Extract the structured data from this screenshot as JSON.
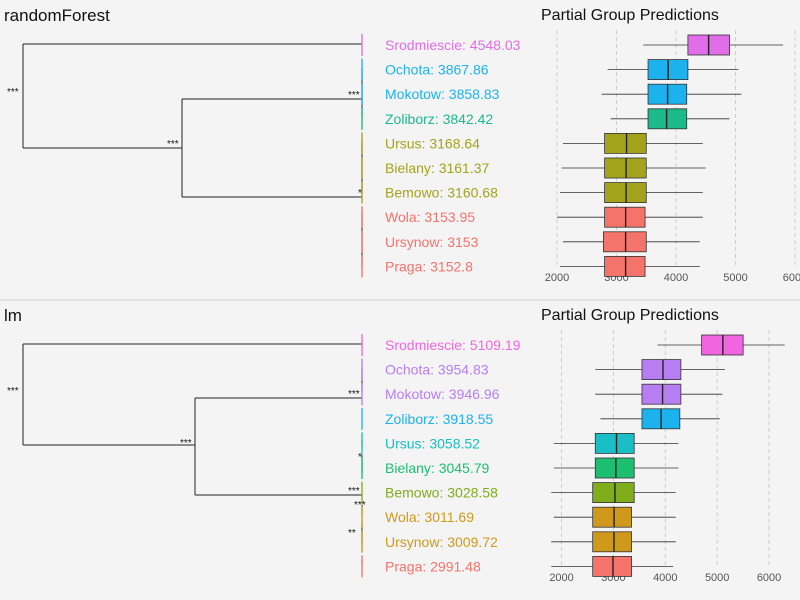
{
  "chart_data": [
    {
      "type": "dendrogram+boxplot",
      "title": "randomForest",
      "right_title": "Partial Group Predictions",
      "xlim": [
        2000,
        6000
      ],
      "xticks": [
        2000,
        3000,
        4000,
        5000,
        6000
      ],
      "groups": [
        {
          "label": "Srodmiescie: 4548.03",
          "color": "#e06ee6",
          "box": {
            "whisker_low": 3450,
            "q1": 4200,
            "median": 4548,
            "q3": 4900,
            "whisker_high": 5800
          }
        },
        {
          "label": "Ochota: 3867.86",
          "color": "#1cb2ed",
          "box": {
            "whisker_low": 2850,
            "q1": 3530,
            "median": 3868,
            "q3": 4200,
            "whisker_high": 5050
          }
        },
        {
          "label": "Mokotow: 3858.83",
          "color": "#1cb2ed",
          "box": {
            "whisker_low": 2750,
            "q1": 3530,
            "median": 3859,
            "q3": 4180,
            "whisker_high": 5100
          }
        },
        {
          "label": "Zoliborz: 3842.42",
          "color": "#1cb98a",
          "box": {
            "whisker_low": 2900,
            "q1": 3530,
            "median": 3842,
            "q3": 4180,
            "whisker_high": 4900
          }
        },
        {
          "label": "Ursus: 3168.64",
          "color": "#a3a31c",
          "box": {
            "whisker_low": 2100,
            "q1": 2800,
            "median": 3169,
            "q3": 3500,
            "whisker_high": 4450
          }
        },
        {
          "label": "Bielany: 3161.37",
          "color": "#a3a31c",
          "box": {
            "whisker_low": 2080,
            "q1": 2800,
            "median": 3161,
            "q3": 3500,
            "whisker_high": 4500
          }
        },
        {
          "label": "Bemowo: 3160.68",
          "color": "#a3a31c",
          "box": {
            "whisker_low": 2050,
            "q1": 2800,
            "median": 3161,
            "q3": 3500,
            "whisker_high": 4450
          }
        },
        {
          "label": "Wola: 3153.95",
          "color": "#f4736b",
          "box": {
            "whisker_low": 2000,
            "q1": 2800,
            "median": 3154,
            "q3": 3480,
            "whisker_high": 4450
          }
        },
        {
          "label": "Ursynow: 3153",
          "color": "#f4736b",
          "box": {
            "whisker_low": 2100,
            "q1": 2780,
            "median": 3153,
            "q3": 3500,
            "whisker_high": 4400
          }
        },
        {
          "label": "Praga: 3152.8",
          "color": "#f4736b",
          "box": {
            "whisker_low": 2050,
            "q1": 2800,
            "median": 3153,
            "q3": 3480,
            "whisker_high": 4400
          }
        }
      ],
      "merges": [
        {
          "stars": "***"
        },
        {
          "stars": "***"
        },
        {
          "stars": "***"
        },
        {
          "stars": "*"
        }
      ]
    },
    {
      "type": "dendrogram+boxplot",
      "title": "lm",
      "right_title": "Partial Group Predictions",
      "xlim": [
        1700,
        6500
      ],
      "xticks": [
        2000,
        3000,
        4000,
        5000,
        6000
      ],
      "groups": [
        {
          "label": "Srodmiescie: 5109.19",
          "color": "#f265e1",
          "box": {
            "whisker_low": 3850,
            "q1": 4700,
            "median": 5109,
            "q3": 5500,
            "whisker_high": 6300
          }
        },
        {
          "label": "Ochota: 3954.83",
          "color": "#b77ef2",
          "box": {
            "whisker_low": 2650,
            "q1": 3550,
            "median": 3955,
            "q3": 4300,
            "whisker_high": 5150
          }
        },
        {
          "label": "Mokotow: 3946.96",
          "color": "#b77ef2",
          "box": {
            "whisker_low": 2650,
            "q1": 3550,
            "median": 3947,
            "q3": 4300,
            "whisker_high": 5100
          }
        },
        {
          "label": "Zoliborz: 3918.55",
          "color": "#1cb2ed",
          "box": {
            "whisker_low": 2750,
            "q1": 3550,
            "median": 3919,
            "q3": 4280,
            "whisker_high": 5050
          }
        },
        {
          "label": "Ursus: 3058.52",
          "color": "#19bfc4",
          "box": {
            "whisker_low": 1850,
            "q1": 2650,
            "median": 3059,
            "q3": 3400,
            "whisker_high": 4250
          }
        },
        {
          "label": "Bielany: 3045.79",
          "color": "#1cbf6f",
          "box": {
            "whisker_low": 1850,
            "q1": 2650,
            "median": 3046,
            "q3": 3400,
            "whisker_high": 4250
          }
        },
        {
          "label": "Bemowo: 3028.58",
          "color": "#7fad1c",
          "box": {
            "whisker_low": 1800,
            "q1": 2600,
            "median": 3029,
            "q3": 3400,
            "whisker_high": 4200
          }
        },
        {
          "label": "Wola: 3011.69",
          "color": "#cf991c",
          "box": {
            "whisker_low": 1850,
            "q1": 2600,
            "median": 3012,
            "q3": 3350,
            "whisker_high": 4200
          }
        },
        {
          "label": "Ursynow: 3009.72",
          "color": "#cf991c",
          "box": {
            "whisker_low": 1800,
            "q1": 2600,
            "median": 3010,
            "q3": 3350,
            "whisker_high": 4200
          }
        },
        {
          "label": "Praga: 2991.48",
          "color": "#f4736b",
          "box": {
            "whisker_low": 1800,
            "q1": 2600,
            "median": 2991,
            "q3": 3350,
            "whisker_high": 4150
          }
        }
      ],
      "merges": [
        {
          "stars": "***"
        },
        {
          "stars": "***"
        },
        {
          "stars": "***"
        },
        {
          "stars": "***"
        },
        {
          "stars": "***"
        },
        {
          "stars": "**"
        },
        {
          "stars": "*"
        }
      ]
    }
  ]
}
